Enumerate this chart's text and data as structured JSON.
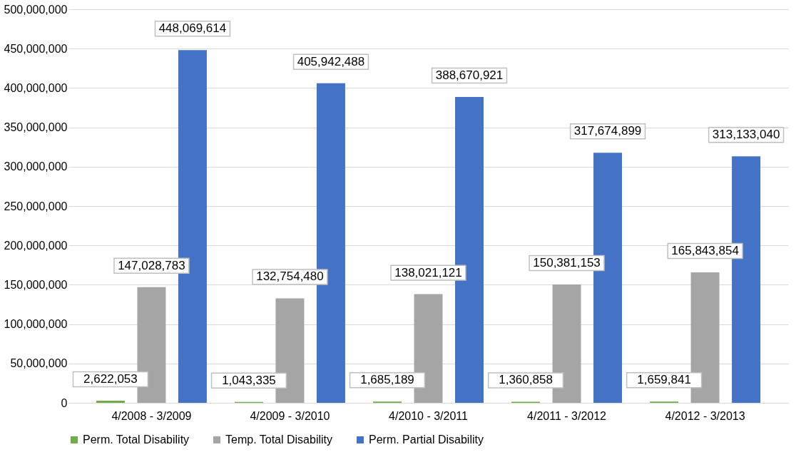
{
  "chart_data": {
    "type": "bar",
    "categories": [
      "4/2008 - 3/2009",
      "4/2009 - 3/2010",
      "4/2010 - 3/2011",
      "4/2011 - 3/2012",
      "4/2012 - 3/2013"
    ],
    "series": [
      {
        "name": "Perm. Total Disability",
        "color": "#70ad47",
        "values": [
          2622053,
          1043335,
          1685189,
          1360858,
          1659841
        ],
        "value_labels": [
          "2,622,053",
          "1,043,335",
          "1,685,189",
          "1,360,858",
          "1,659,841"
        ]
      },
      {
        "name": "Temp. Total Disability",
        "color": "#a5a5a5",
        "values": [
          147028783,
          132754480,
          138021121,
          150381153,
          165843854
        ],
        "value_labels": [
          "147,028,783",
          "132,754,480",
          "138,021,121",
          "150,381,153",
          "165,843,854"
        ]
      },
      {
        "name": "Perm. Partial Disability",
        "color": "#4472c4",
        "values": [
          448069614,
          405942488,
          388670921,
          317674899,
          313133040
        ],
        "value_labels": [
          "448,069,614",
          "405,942,488",
          "388,670,921",
          "317,674,899",
          "313,133,040"
        ]
      }
    ],
    "ylim": [
      0,
      500000000
    ],
    "yticks": [
      0,
      {
        "value": 50000000,
        "label": "50,000,000"
      },
      {
        "value": 100000000,
        "label": "100,000,000"
      },
      {
        "value": 150000000,
        "label": "150,000,000"
      },
      {
        "value": 200000000,
        "label": "200,000,000"
      },
      {
        "value": 250000000,
        "label": "250,000,000"
      },
      {
        "value": 300000000,
        "label": "300,000,000"
      },
      {
        "value": 350000000,
        "label": "350,000,000"
      },
      {
        "value": 400000000,
        "label": "400,000,000"
      },
      {
        "value": 450000000,
        "label": "450,000,000"
      },
      {
        "value": 500000000,
        "label": "500,000,000"
      }
    ],
    "grid": "y",
    "legend": "bottom"
  }
}
